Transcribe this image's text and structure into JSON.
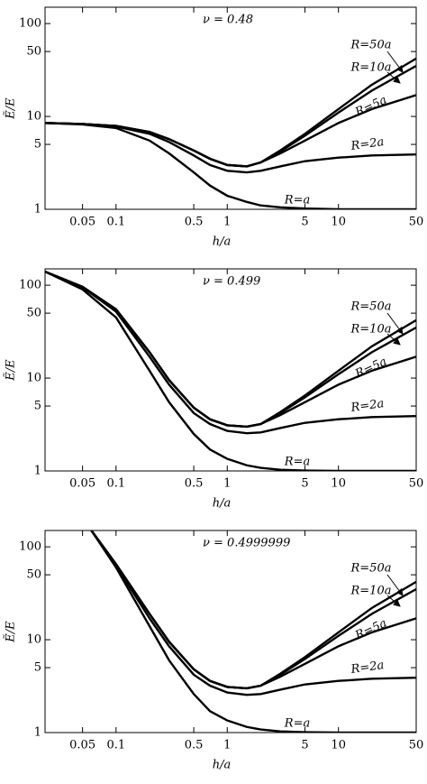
{
  "chart_data": [
    {
      "type": "line",
      "annotation": "ν = 0.48",
      "x_label": "h/a",
      "y_label": "Ẽ/E",
      "log_x": true,
      "log_y": true,
      "color": "#000000",
      "xlim": [
        0.023,
        50
      ],
      "ylim": [
        1,
        150
      ],
      "xticks": [
        0.05,
        0.1,
        0.5,
        1,
        5,
        10,
        50
      ],
      "yticks": [
        1,
        5,
        10,
        50,
        100
      ],
      "x": [
        0.023,
        0.05,
        0.1,
        0.2,
        0.3,
        0.5,
        0.7,
        1,
        1.5,
        2,
        3,
        5,
        10,
        20,
        50
      ],
      "series": [
        {
          "name": "R=a",
          "values": [
            8.5,
            8.2,
            7.5,
            5.5,
            4,
            2.5,
            1.8,
            1.4,
            1.2,
            1.1,
            1.05,
            1.02,
            1.0,
            1.0,
            1.0
          ]
        },
        {
          "name": "R=2a",
          "values": [
            8.5,
            8.3,
            7.8,
            6.5,
            5.3,
            3.8,
            3.0,
            2.6,
            2.5,
            2.6,
            2.9,
            3.3,
            3.6,
            3.8,
            3.9
          ]
        },
        {
          "name": "R=5a",
          "values": [
            8.5,
            8.3,
            7.9,
            6.8,
            5.7,
            4.3,
            3.5,
            3.0,
            2.9,
            3.2,
            4.0,
            5.5,
            8.5,
            12,
            17
          ]
        },
        {
          "name": "R=10a",
          "values": [
            8.5,
            8.3,
            7.9,
            6.8,
            5.7,
            4.3,
            3.5,
            3.0,
            2.9,
            3.2,
            4.2,
            6.2,
            11,
            19,
            35
          ]
        },
        {
          "name": "R=50a",
          "values": [
            8.5,
            8.3,
            7.9,
            6.8,
            5.7,
            4.3,
            3.5,
            3.0,
            2.9,
            3.2,
            4.3,
            6.5,
            12,
            22,
            42
          ]
        }
      ]
    },
    {
      "type": "line",
      "annotation": "ν = 0.499",
      "x_label": "h/a",
      "y_label": "Ẽ/E",
      "log_x": true,
      "log_y": true,
      "color": "#000000",
      "xlim": [
        0.023,
        50
      ],
      "ylim": [
        1,
        150
      ],
      "xticks": [
        0.05,
        0.1,
        0.5,
        1,
        5,
        10,
        50
      ],
      "yticks": [
        1,
        5,
        10,
        50,
        100
      ],
      "x": [
        0.023,
        0.05,
        0.1,
        0.2,
        0.3,
        0.5,
        0.7,
        1,
        1.5,
        2,
        3,
        5,
        10,
        20,
        50
      ],
      "series": [
        {
          "name": "R=a",
          "values": [
            140,
            90,
            45,
            12,
            5.5,
            2.5,
            1.7,
            1.35,
            1.15,
            1.08,
            1.03,
            1.01,
            1.0,
            1.0,
            1.0
          ]
        },
        {
          "name": "R=2a",
          "values": [
            140,
            95,
            52,
            17,
            8.5,
            4.2,
            3.2,
            2.7,
            2.55,
            2.6,
            2.9,
            3.3,
            3.6,
            3.8,
            3.9
          ]
        },
        {
          "name": "R=5a",
          "values": [
            140,
            96,
            55,
            19,
            9.5,
            4.8,
            3.6,
            3.1,
            3.0,
            3.2,
            4.0,
            5.5,
            8.5,
            12,
            17
          ]
        },
        {
          "name": "R=10a",
          "values": [
            140,
            96,
            55,
            19,
            9.5,
            4.8,
            3.6,
            3.1,
            3.0,
            3.2,
            4.2,
            6.2,
            11,
            19,
            35
          ]
        },
        {
          "name": "R=50a",
          "values": [
            140,
            96,
            55,
            19,
            9.5,
            4.8,
            3.6,
            3.1,
            3.0,
            3.2,
            4.3,
            6.5,
            12,
            22,
            42
          ]
        }
      ]
    },
    {
      "type": "line",
      "annotation": "ν = 0.4999999",
      "x_label": "h/a",
      "y_label": "Ẽ/E",
      "log_x": true,
      "log_y": true,
      "color": "#000000",
      "xlim": [
        0.023,
        50
      ],
      "ylim": [
        1,
        150
      ],
      "xticks": [
        0.05,
        0.1,
        0.5,
        1,
        5,
        10,
        50
      ],
      "yticks": [
        1,
        5,
        10,
        50,
        100
      ],
      "x": [
        0.06,
        0.1,
        0.2,
        0.3,
        0.5,
        0.7,
        1,
        1.5,
        2,
        3,
        5,
        10,
        20,
        50
      ],
      "series": [
        {
          "name": "R=a",
          "values": [
            150,
            60,
            14,
            6,
            2.6,
            1.7,
            1.35,
            1.15,
            1.08,
            1.03,
            1.01,
            1.0,
            1.0,
            1.0
          ]
        },
        {
          "name": "R=2a",
          "values": [
            150,
            63,
            17,
            8.5,
            4.2,
            3.2,
            2.7,
            2.55,
            2.6,
            2.9,
            3.3,
            3.6,
            3.8,
            3.9
          ]
        },
        {
          "name": "R=5a",
          "values": [
            150,
            65,
            19,
            9.5,
            4.8,
            3.6,
            3.1,
            3.0,
            3.2,
            4.0,
            5.5,
            8.5,
            12,
            17
          ]
        },
        {
          "name": "R=10a",
          "values": [
            150,
            65,
            19,
            9.5,
            4.8,
            3.6,
            3.1,
            3.0,
            3.2,
            4.2,
            6.2,
            11,
            19,
            35
          ]
        },
        {
          "name": "R=50a",
          "values": [
            150,
            65,
            19,
            9.5,
            4.8,
            3.6,
            3.1,
            3.0,
            3.2,
            4.3,
            6.5,
            12,
            22,
            42
          ]
        }
      ]
    }
  ]
}
